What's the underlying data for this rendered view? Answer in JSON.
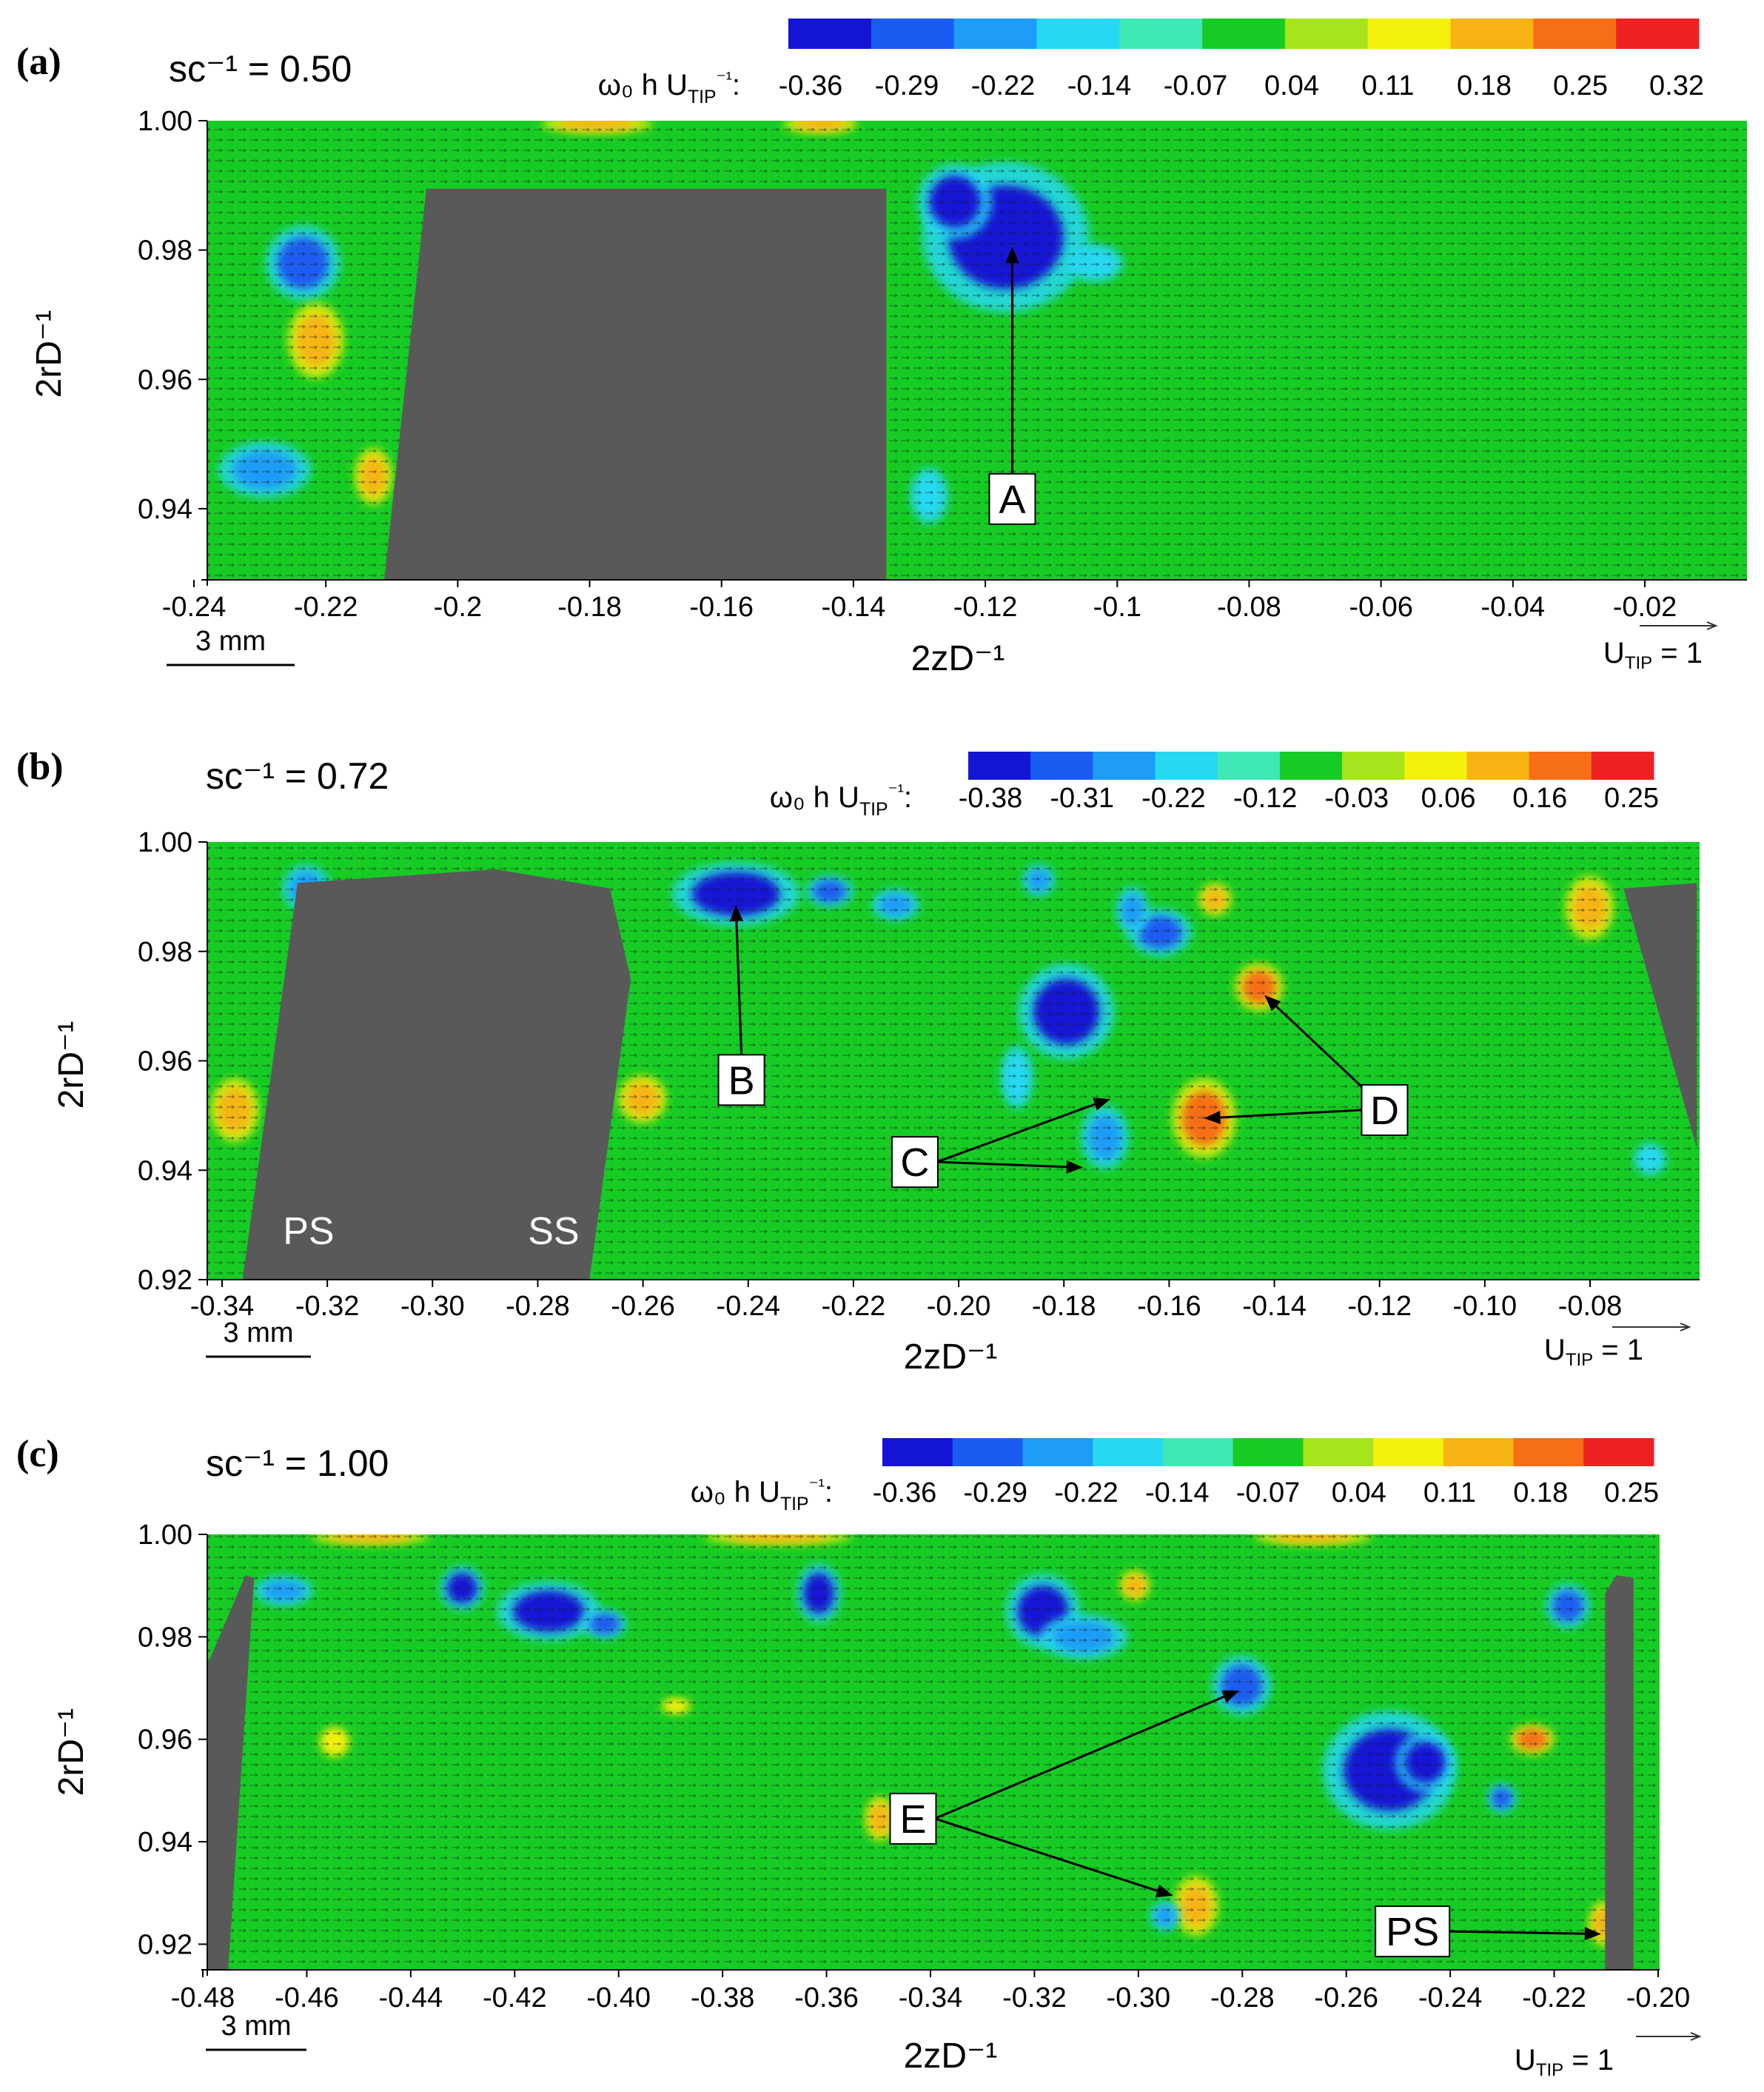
{
  "colors": {
    "field": "#16cc24",
    "blade": "#595959",
    "colormap": [
      "#1414d4",
      "#1a5cf0",
      "#1e9cf6",
      "#27d8f2",
      "#3fe8b4",
      "#16cc24",
      "#a8e41c",
      "#f4f00e",
      "#f6b412",
      "#f66e16",
      "#ee2222"
    ]
  },
  "chart_data": [
    {
      "type": "heatmap",
      "panel_label": "(a)",
      "parameter_text": "sc⁻¹ = 0.50",
      "colorbar_label": "ω₀ h U_TIP⁻¹:",
      "colorbar_ticks": [
        "-0.36",
        "-0.29",
        "-0.22",
        "-0.14",
        "-0.07",
        "0.04",
        "0.11",
        "0.18",
        "0.25",
        "0.32"
      ],
      "xlabel": "2zD⁻¹",
      "ylabel": "2rD⁻¹",
      "xlim": [
        -0.241,
        0.0
      ],
      "ylim": [
        0.929,
        1.0
      ],
      "x_ticks": [
        "-0.24",
        "-0.22",
        "-0.2",
        "-0.18",
        "-0.16",
        "-0.14",
        "-0.12",
        "-0.1",
        "-0.08",
        "-0.06",
        "-0.04",
        "-0.02"
      ],
      "y_ticks": [
        "1.00",
        "0.98",
        "0.96",
        "0.94"
      ],
      "scale_bar": "3 mm",
      "reference_vector": "U_TIP = 1",
      "blades": [
        {
          "polygon": [
            [
              -0.2133,
              0.929
            ],
            [
              -0.2067,
              0.9895
            ],
            [
              -0.1347,
              0.9895
            ],
            [
              -0.1347,
              0.929
            ]
          ]
        }
      ],
      "vortices": [
        {
          "x": -0.116,
          "y": 0.982,
          "rx": 0.009,
          "ry": 0.008,
          "value": -0.36
        },
        {
          "x": -0.124,
          "y": 0.9875,
          "rx": 0.004,
          "ry": 0.004,
          "value": -0.36
        },
        {
          "x": -0.226,
          "y": 0.978,
          "rx": 0.004,
          "ry": 0.004,
          "value": -0.29
        },
        {
          "x": -0.224,
          "y": 0.966,
          "rx": 0.003,
          "ry": 0.004,
          "value": 0.25
        },
        {
          "x": -0.232,
          "y": 0.946,
          "rx": 0.005,
          "ry": 0.003,
          "value": -0.22
        },
        {
          "x": -0.215,
          "y": 0.945,
          "rx": 0.002,
          "ry": 0.003,
          "value": 0.22
        },
        {
          "x": -0.18,
          "y": 0.9995,
          "rx": 0.006,
          "ry": 0.001,
          "value": 0.18
        },
        {
          "x": -0.145,
          "y": 0.9995,
          "rx": 0.004,
          "ry": 0.001,
          "value": 0.22
        },
        {
          "x": -0.128,
          "y": 0.942,
          "rx": 0.002,
          "ry": 0.003,
          "value": -0.14
        },
        {
          "x": -0.102,
          "y": 0.978,
          "rx": 0.003,
          "ry": 0.002,
          "value": -0.14
        }
      ],
      "annotations": [
        {
          "label": "A",
          "box": [
            -0.115,
            0.9415
          ],
          "arrows": [
            [
              -0.115,
              0.9805
            ]
          ]
        }
      ]
    },
    {
      "type": "heatmap",
      "panel_label": "(b)",
      "parameter_text": "sc⁻¹ = 0.72",
      "colorbar_label": "ω₀ h U_TIP⁻¹:",
      "colorbar_ticks": [
        "-0.38",
        "-0.31",
        "-0.22",
        "-0.12",
        "-0.03",
        "0.06",
        "0.16",
        "0.25"
      ],
      "xlabel": "2zD⁻¹",
      "ylabel": "2rD⁻¹",
      "xlim": [
        -0.341,
        -0.07
      ],
      "ylim": [
        0.92,
        1.0
      ],
      "x_ticks": [
        "-0.34",
        "-0.32",
        "-0.30",
        "-0.28",
        "-0.26",
        "-0.24",
        "-0.22",
        "-0.20",
        "-0.18",
        "-0.16",
        "-0.14",
        "-0.12",
        "-0.10",
        "-0.08"
      ],
      "y_ticks": [
        "1.00",
        "0.98",
        "0.96",
        "0.94",
        "0.92"
      ],
      "scale_bar": "3 mm",
      "reference_vector": "U_TIP =  1",
      "blades": [
        {
          "polygon": [
            [
              -0.3346,
              0.92
            ],
            [
              -0.3246,
              0.9925
            ],
            [
              -0.2886,
              0.995
            ],
            [
              -0.2679,
              0.9915
            ],
            [
              -0.2641,
              0.975
            ],
            [
              -0.2716,
              0.92
            ]
          ]
        },
        {
          "polygon": [
            [
              -0.0838,
              0.9915
            ],
            [
              -0.0705,
              0.9925
            ],
            [
              -0.0705,
              0.944
            ]
          ]
        }
      ],
      "blade_labels": [
        {
          "text": "PS",
          "x": -0.3226,
          "y": 0.9265
        },
        {
          "text": "SS",
          "x": -0.2781,
          "y": 0.9265
        }
      ],
      "vortices": [
        {
          "x": -0.245,
          "y": 0.9905,
          "rx": 0.008,
          "ry": 0.004,
          "value": -0.38
        },
        {
          "x": -0.228,
          "y": 0.991,
          "rx": 0.003,
          "ry": 0.002,
          "value": -0.31
        },
        {
          "x": -0.216,
          "y": 0.9885,
          "rx": 0.003,
          "ry": 0.002,
          "value": -0.22
        },
        {
          "x": -0.323,
          "y": 0.9915,
          "rx": 0.003,
          "ry": 0.003,
          "value": -0.22
        },
        {
          "x": -0.185,
          "y": 0.969,
          "rx": 0.006,
          "ry": 0.006,
          "value": -0.38
        },
        {
          "x": -0.168,
          "y": 0.9835,
          "rx": 0.004,
          "ry": 0.003,
          "value": -0.31
        },
        {
          "x": -0.173,
          "y": 0.9875,
          "rx": 0.002,
          "ry": 0.003,
          "value": -0.22
        },
        {
          "x": -0.19,
          "y": 0.993,
          "rx": 0.002,
          "ry": 0.002,
          "value": -0.22
        },
        {
          "x": -0.15,
          "y": 0.9735,
          "rx": 0.003,
          "ry": 0.003,
          "value": 0.32
        },
        {
          "x": -0.16,
          "y": 0.9495,
          "rx": 0.004,
          "ry": 0.005,
          "value": 0.3
        },
        {
          "x": -0.158,
          "y": 0.9895,
          "rx": 0.002,
          "ry": 0.002,
          "value": 0.18
        },
        {
          "x": -0.178,
          "y": 0.946,
          "rx": 0.003,
          "ry": 0.004,
          "value": -0.22
        },
        {
          "x": -0.194,
          "y": 0.957,
          "rx": 0.002,
          "ry": 0.004,
          "value": -0.14
        },
        {
          "x": -0.262,
          "y": 0.953,
          "rx": 0.003,
          "ry": 0.003,
          "value": 0.18
        },
        {
          "x": -0.336,
          "y": 0.951,
          "rx": 0.003,
          "ry": 0.004,
          "value": 0.18
        },
        {
          "x": -0.09,
          "y": 0.988,
          "rx": 0.003,
          "ry": 0.004,
          "value": 0.18
        },
        {
          "x": -0.079,
          "y": 0.942,
          "rx": 0.002,
          "ry": 0.002,
          "value": -0.14
        }
      ],
      "annotations": [
        {
          "label": "B",
          "box": [
            -0.244,
            0.9565
          ],
          "arrows": [
            [
              -0.245,
              0.9885
            ]
          ]
        },
        {
          "label": "C",
          "box": [
            -0.2125,
            0.9415
          ],
          "arrows": [
            [
              -0.177,
              0.953
            ],
            [
              -0.182,
              0.9405
            ]
          ]
        },
        {
          "label": "D",
          "box": [
            -0.1272,
            0.951
          ],
          "arrows": [
            [
              -0.149,
              0.972
            ],
            [
              -0.16,
              0.9495
            ]
          ]
        }
      ]
    },
    {
      "type": "heatmap",
      "panel_label": "(c)",
      "parameter_text": "sc⁻¹ = 1.00",
      "colorbar_label": "ω₀ h U_TIP⁻¹:",
      "colorbar_ticks": [
        "-0.36",
        "-0.29",
        "-0.22",
        "-0.14",
        "-0.07",
        "0.04",
        "0.11",
        "0.18",
        "0.25"
      ],
      "xlabel": "2zD⁻¹",
      "ylabel": "2rD⁻¹",
      "xlim": [
        -0.482,
        -0.197
      ],
      "ylim": [
        0.915,
        1.0
      ],
      "x_ticks": [
        "-0.48",
        "-0.46",
        "-0.44",
        "-0.42",
        "-0.40",
        "-0.38",
        "-0.36",
        "-0.34",
        "-0.32",
        "-0.30",
        "-0.28",
        "-0.26",
        "-0.24",
        "-0.22",
        "-0.20"
      ],
      "y_ticks": [
        "1.00",
        "0.98",
        "0.96",
        "0.94",
        "0.92"
      ],
      "scale_bar": "3 mm",
      "reference_vector": "U_TIP =  1",
      "blades": [
        {
          "polygon": [
            [
              -0.482,
              0.915
            ],
            [
              -0.482,
              0.9745
            ],
            [
              -0.4745,
              0.992
            ],
            [
              -0.4728,
              0.9915
            ],
            [
              -0.4779,
              0.915
            ]
          ]
        },
        {
          "polygon": [
            [
              -0.2077,
              0.915
            ],
            [
              -0.2077,
              0.9885
            ],
            [
              -0.2055,
              0.992
            ],
            [
              -0.2021,
              0.9915
            ],
            [
              -0.2021,
              0.915
            ]
          ]
        }
      ],
      "blade_labels": [],
      "vortices": [
        {
          "x": -0.25,
          "y": 0.954,
          "rx": 0.009,
          "ry": 0.008,
          "value": -0.36
        },
        {
          "x": -0.243,
          "y": 0.9555,
          "rx": 0.004,
          "ry": 0.004,
          "value": -0.36
        },
        {
          "x": -0.318,
          "y": 0.985,
          "rx": 0.005,
          "ry": 0.005,
          "value": -0.36
        },
        {
          "x": -0.31,
          "y": 0.98,
          "rx": 0.006,
          "ry": 0.003,
          "value": -0.22
        },
        {
          "x": -0.279,
          "y": 0.9705,
          "rx": 0.004,
          "ry": 0.004,
          "value": -0.29
        },
        {
          "x": -0.415,
          "y": 0.985,
          "rx": 0.007,
          "ry": 0.004,
          "value": -0.36
        },
        {
          "x": -0.404,
          "y": 0.9825,
          "rx": 0.003,
          "ry": 0.002,
          "value": -0.29
        },
        {
          "x": -0.432,
          "y": 0.9895,
          "rx": 0.003,
          "ry": 0.003,
          "value": -0.36
        },
        {
          "x": -0.362,
          "y": 0.9885,
          "rx": 0.003,
          "ry": 0.004,
          "value": -0.36
        },
        {
          "x": -0.467,
          "y": 0.989,
          "rx": 0.004,
          "ry": 0.002,
          "value": -0.22
        },
        {
          "x": -0.215,
          "y": 0.986,
          "rx": 0.003,
          "ry": 0.003,
          "value": -0.29
        },
        {
          "x": -0.228,
          "y": 0.9485,
          "rx": 0.002,
          "ry": 0.002,
          "value": -0.29
        },
        {
          "x": -0.222,
          "y": 0.96,
          "rx": 0.003,
          "ry": 0.002,
          "value": 0.3
        },
        {
          "x": -0.288,
          "y": 0.9275,
          "rx": 0.003,
          "ry": 0.004,
          "value": 0.18
        },
        {
          "x": -0.294,
          "y": 0.9255,
          "rx": 0.002,
          "ry": 0.002,
          "value": -0.22
        },
        {
          "x": -0.35,
          "y": 0.9445,
          "rx": 0.002,
          "ry": 0.003,
          "value": 0.18
        },
        {
          "x": -0.3,
          "y": 0.99,
          "rx": 0.002,
          "ry": 0.002,
          "value": 0.18
        },
        {
          "x": -0.265,
          "y": 0.9995,
          "rx": 0.008,
          "ry": 0.001,
          "value": 0.25
        },
        {
          "x": -0.37,
          "y": 0.9995,
          "rx": 0.01,
          "ry": 0.001,
          "value": 0.18
        },
        {
          "x": -0.45,
          "y": 0.9995,
          "rx": 0.008,
          "ry": 0.001,
          "value": 0.18
        },
        {
          "x": -0.39,
          "y": 0.9665,
          "rx": 0.002,
          "ry": 0.001,
          "value": 0.11
        },
        {
          "x": -0.457,
          "y": 0.9595,
          "rx": 0.002,
          "ry": 0.002,
          "value": 0.11
        },
        {
          "x": -0.208,
          "y": 0.924,
          "rx": 0.002,
          "ry": 0.003,
          "value": 0.18
        }
      ],
      "annotations": [
        {
          "label": "E",
          "box": [
            -0.3435,
            0.9445
          ],
          "arrows": [
            [
              -0.2795,
              0.9695
            ],
            [
              -0.2925,
              0.9295
            ]
          ]
        },
        {
          "label": "PS",
          "box": [
            -0.2455,
            0.9225
          ],
          "arrows": [
            [
              -0.2085,
              0.922
            ]
          ]
        }
      ]
    }
  ]
}
